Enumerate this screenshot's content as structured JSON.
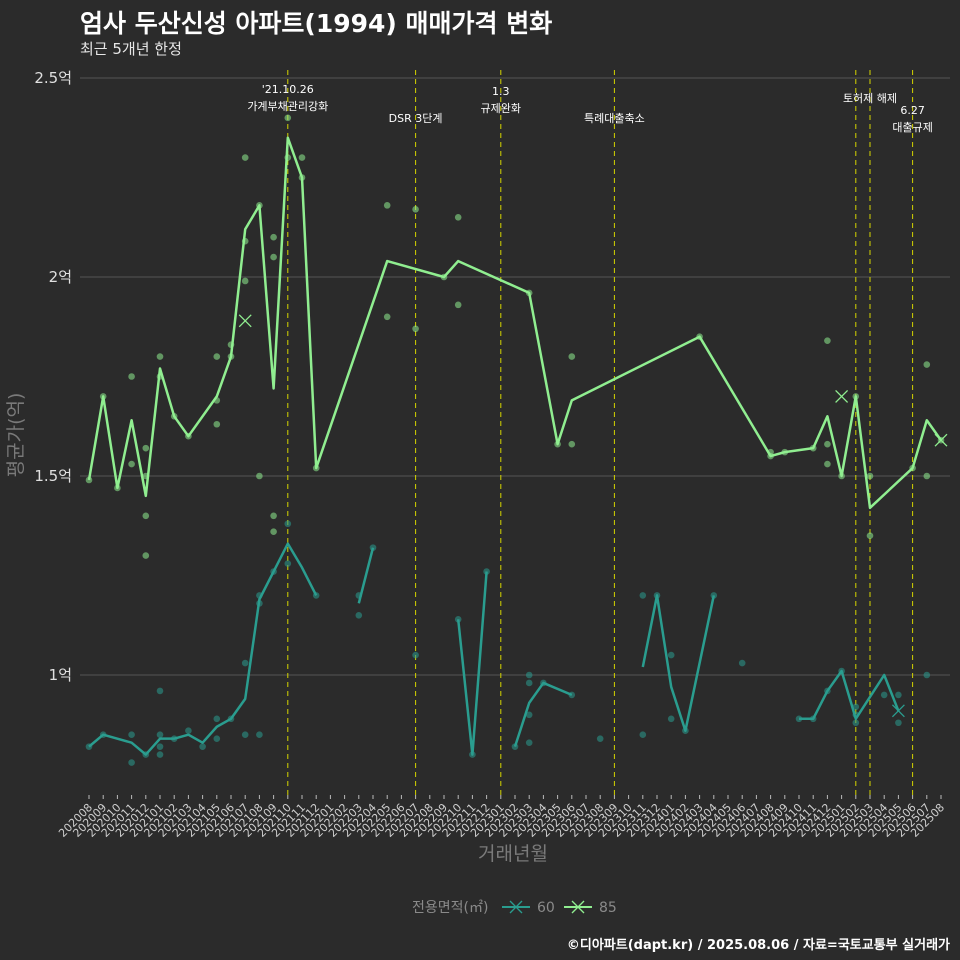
{
  "title": "엄사 두산신성 아파트(1994) 매매가격 변화",
  "subtitle": "최근 5개년 한정",
  "source": "©디아파트(dapt.kr) / 2025.08.06 / 자료=국토교통부 실거래가",
  "colors": {
    "background": "#2b2b2b",
    "grid": "#555555",
    "policy_line": "#d4d400",
    "series_60": "#2a9d8f",
    "series_85": "#90ee90"
  },
  "chart_data": {
    "type": "line",
    "xlabel": "거래년월",
    "ylabel": "평균가(억)",
    "ylim": [
      0.7,
      2.5
    ],
    "yticks": [
      1.0,
      1.5,
      2.0,
      2.5
    ],
    "ytick_labels": [
      "1억",
      "1.5억",
      "2억",
      "2.5억"
    ],
    "x": [
      "202008",
      "202009",
      "202010",
      "202011",
      "202012",
      "202101",
      "202102",
      "202103",
      "202104",
      "202105",
      "202106",
      "202107",
      "202108",
      "202109",
      "202110",
      "202111",
      "202112",
      "202201",
      "202202",
      "202203",
      "202204",
      "202205",
      "202206",
      "202207",
      "202208",
      "202209",
      "202210",
      "202211",
      "202212",
      "202301",
      "202302",
      "202303",
      "202304",
      "202305",
      "202306",
      "202307",
      "202308",
      "202309",
      "202310",
      "202311",
      "202312",
      "202401",
      "202402",
      "202403",
      "202404",
      "202405",
      "202406",
      "202407",
      "202408",
      "202409",
      "202410",
      "202411",
      "202412",
      "202501",
      "202502",
      "202503",
      "202504",
      "202505",
      "202506",
      "202507",
      "202508"
    ],
    "legend_title": "전용면적(㎡)",
    "legend_position": "bottom",
    "grid": true,
    "series": [
      {
        "name": "60",
        "color": "#2a9d8f",
        "line": [
          [
            0,
            0.82
          ],
          [
            1,
            0.85
          ],
          [
            2,
            0.84
          ],
          [
            3,
            0.83
          ],
          [
            4,
            0.8
          ],
          [
            5,
            0.84
          ],
          [
            6,
            0.84
          ],
          [
            7,
            0.85
          ],
          [
            8,
            0.83
          ],
          [
            9,
            0.87
          ],
          [
            10,
            0.89
          ],
          [
            11,
            0.94
          ],
          [
            12,
            1.19
          ],
          [
            13,
            1.26
          ],
          [
            14,
            1.33
          ],
          [
            15,
            1.27
          ],
          [
            16,
            1.2
          ],
          null,
          [
            19,
            1.18
          ],
          [
            20,
            1.32
          ],
          null,
          [
            26,
            1.14
          ],
          [
            27,
            0.8
          ],
          [
            28,
            1.26
          ],
          null,
          [
            30,
            0.82
          ],
          [
            31,
            0.93
          ],
          [
            32,
            0.98
          ],
          [
            34,
            0.95
          ],
          null,
          [
            39,
            1.02
          ],
          [
            40,
            1.2
          ],
          [
            41,
            0.97
          ],
          [
            42,
            0.86
          ],
          [
            44,
            1.2
          ],
          null,
          [
            50,
            0.89
          ],
          [
            51,
            0.89
          ],
          [
            52,
            0.96
          ],
          [
            53,
            1.01
          ],
          [
            54,
            0.89
          ],
          [
            56,
            1.0
          ],
          [
            57,
            0.91
          ]
        ],
        "points": [
          [
            0,
            0.82
          ],
          [
            1,
            0.85
          ],
          [
            3,
            0.78
          ],
          [
            3,
            0.85
          ],
          [
            4,
            0.8
          ],
          [
            5,
            0.8
          ],
          [
            5,
            0.82
          ],
          [
            5,
            0.96
          ],
          [
            5,
            0.85
          ],
          [
            6,
            0.84
          ],
          [
            7,
            0.86
          ],
          [
            8,
            0.82
          ],
          [
            9,
            0.84
          ],
          [
            9,
            0.89
          ],
          [
            10,
            0.89
          ],
          [
            11,
            0.85
          ],
          [
            11,
            1.03
          ],
          [
            12,
            0.85
          ],
          [
            12,
            1.18
          ],
          [
            12,
            1.2
          ],
          [
            13,
            1.26
          ],
          [
            14,
            1.28
          ],
          [
            14,
            1.38
          ],
          [
            16,
            1.2
          ],
          [
            19,
            1.15
          ],
          [
            19,
            1.2
          ],
          [
            20,
            1.32
          ],
          [
            23,
            1.05
          ],
          [
            26,
            1.14
          ],
          [
            27,
            0.8
          ],
          [
            28,
            1.26
          ],
          [
            30,
            0.82
          ],
          [
            31,
            0.83
          ],
          [
            31,
            0.9
          ],
          [
            31,
            0.98
          ],
          [
            31,
            1.0
          ],
          [
            32,
            0.98
          ],
          [
            34,
            0.95
          ],
          [
            36,
            0.84
          ],
          [
            39,
            0.85
          ],
          [
            39,
            1.2
          ],
          [
            40,
            1.2
          ],
          [
            41,
            1.05
          ],
          [
            41,
            0.89
          ],
          [
            42,
            0.86
          ],
          [
            44,
            1.2
          ],
          [
            46,
            1.03
          ],
          [
            50,
            0.89
          ],
          [
            51,
            0.89
          ],
          [
            52,
            0.96
          ],
          [
            53,
            1.01
          ],
          [
            54,
            0.88
          ],
          [
            54,
            0.9
          ],
          [
            54,
            0.92
          ],
          [
            56,
            0.95
          ],
          [
            57,
            0.88
          ],
          [
            57,
            0.95
          ],
          [
            59,
            1.0
          ]
        ],
        "cross": [
          57,
          0.91
        ]
      },
      {
        "name": "85",
        "color": "#90ee90",
        "line": [
          [
            0,
            1.49
          ],
          [
            1,
            1.7
          ],
          [
            2,
            1.47
          ],
          [
            3,
            1.64
          ],
          [
            4,
            1.45
          ],
          [
            5,
            1.77
          ],
          [
            6,
            1.65
          ],
          [
            7,
            1.6
          ],
          [
            9,
            1.7
          ],
          [
            10,
            1.8
          ],
          [
            11,
            2.12
          ],
          [
            12,
            2.18
          ],
          [
            13,
            1.72
          ],
          [
            14,
            2.35
          ],
          [
            15,
            2.25
          ],
          [
            16,
            1.52
          ],
          [
            21,
            2.04
          ],
          [
            25,
            2.0
          ],
          [
            26,
            2.04
          ],
          [
            31,
            1.96
          ],
          [
            33,
            1.58
          ],
          [
            34,
            1.69
          ],
          [
            43,
            1.85
          ],
          [
            48,
            1.55
          ],
          [
            49,
            1.56
          ],
          [
            51,
            1.57
          ],
          [
            52,
            1.65
          ],
          [
            53,
            1.5
          ],
          [
            54,
            1.7
          ],
          [
            55,
            1.42
          ],
          [
            58,
            1.52
          ],
          [
            59,
            1.64
          ],
          [
            60,
            1.59
          ]
        ],
        "points": [
          [
            0,
            1.49
          ],
          [
            1,
            1.7
          ],
          [
            2,
            1.47
          ],
          [
            3,
            1.75
          ],
          [
            3,
            1.53
          ],
          [
            4,
            1.57
          ],
          [
            4,
            1.3
          ],
          [
            4,
            1.4
          ],
          [
            4,
            1.5
          ],
          [
            5,
            1.8
          ],
          [
            5,
            1.75
          ],
          [
            6,
            1.65
          ],
          [
            7,
            1.6
          ],
          [
            9,
            1.8
          ],
          [
            9,
            1.69
          ],
          [
            9,
            1.63
          ],
          [
            10,
            1.8
          ],
          [
            10,
            1.83
          ],
          [
            11,
            2.3
          ],
          [
            11,
            2.09
          ],
          [
            11,
            1.99
          ],
          [
            12,
            2.18
          ],
          [
            12,
            1.5
          ],
          [
            13,
            2.1
          ],
          [
            13,
            2.05
          ],
          [
            13,
            1.4
          ],
          [
            13,
            1.36
          ],
          [
            14,
            2.4
          ],
          [
            14,
            2.3
          ],
          [
            15,
            2.3
          ],
          [
            15,
            2.25
          ],
          [
            16,
            1.52
          ],
          [
            21,
            2.18
          ],
          [
            21,
            1.9
          ],
          [
            23,
            2.17
          ],
          [
            23,
            1.87
          ],
          [
            25,
            2.0
          ],
          [
            26,
            2.15
          ],
          [
            26,
            1.93
          ],
          [
            31,
            1.96
          ],
          [
            33,
            1.58
          ],
          [
            34,
            1.8
          ],
          [
            34,
            1.58
          ],
          [
            43,
            1.85
          ],
          [
            48,
            1.56
          ],
          [
            48,
            1.55
          ],
          [
            49,
            1.56
          ],
          [
            51,
            1.57
          ],
          [
            52,
            1.84
          ],
          [
            52,
            1.58
          ],
          [
            52,
            1.53
          ],
          [
            53,
            1.5
          ],
          [
            54,
            1.7
          ],
          [
            55,
            1.5
          ],
          [
            55,
            1.35
          ],
          [
            58,
            1.52
          ],
          [
            59,
            1.78
          ],
          [
            59,
            1.5
          ],
          [
            60,
            1.59
          ]
        ],
        "cross": [
          [
            11,
            1.89
          ],
          [
            53,
            1.7
          ],
          [
            60,
            1.59
          ]
        ]
      }
    ],
    "annotations": [
      {
        "x": 14,
        "lines": [
          "'21.10.26",
          "가계부채관리강화"
        ]
      },
      {
        "x": 23,
        "lines": [
          "DSR 3단계"
        ]
      },
      {
        "x": 29,
        "lines": [
          "1.3",
          "규제완화"
        ]
      },
      {
        "x": 37,
        "lines": [
          "특례대출축소"
        ]
      },
      {
        "x": 54,
        "lines": []
      },
      {
        "x": 55,
        "lines": [
          "토허제 해제"
        ]
      },
      {
        "x": 58,
        "lines": [
          "6.27",
          "대출규제"
        ]
      }
    ]
  }
}
